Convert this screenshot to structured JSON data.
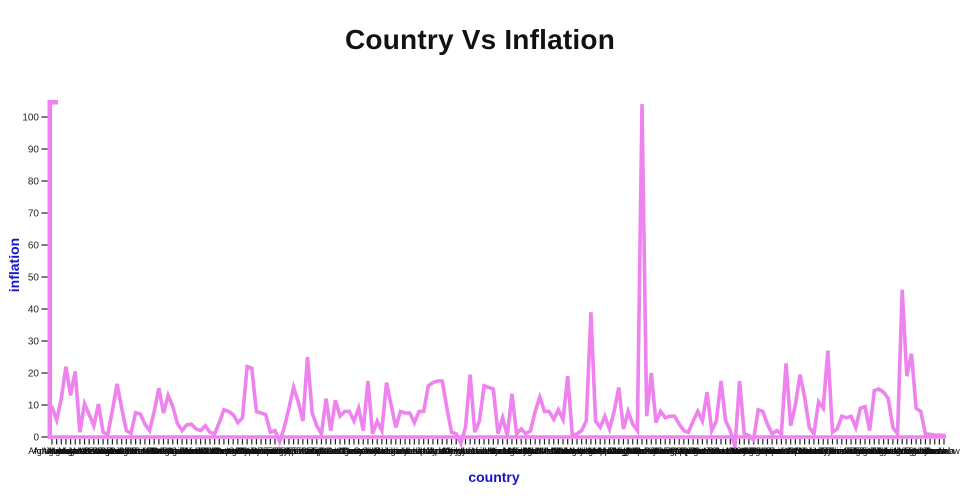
{
  "title": "Country Vs Inflation",
  "colors": {
    "line": "#EE82EE",
    "axis": "#EE82EE",
    "axis_title": "#1414d2",
    "tick": "#333333",
    "tick_label": "#262626",
    "title_text": "#111111",
    "background": "#FFFFFF"
  },
  "chart_data": {
    "type": "line",
    "title": "Country Vs Inflation",
    "xlabel": "country",
    "ylabel": "inflation",
    "legend": false,
    "grid": false,
    "yticks": [
      0,
      10,
      20,
      30,
      40,
      50,
      60,
      70,
      80,
      90,
      100
    ],
    "ylim": [
      -3,
      104
    ],
    "line_color": "#EE82EE",
    "categories": [
      "Afghanistan",
      "Albania",
      "Algeria",
      "Andorra",
      "Angola",
      "Antigua and Barbuda",
      "Argentina",
      "Armenia",
      "Australia",
      "Austria",
      "Azerbaijan",
      "Bahamas",
      "Bahrain",
      "Bangladesh",
      "Barbados",
      "Belarus",
      "Belgium",
      "Belize",
      "Benin",
      "Bhutan",
      "Bolivia",
      "Bosnia and Herzegovina",
      "Botswana",
      "Brazil",
      "Brunei",
      "Bulgaria",
      "Burkina Faso",
      "Burundi",
      "Cabo Verde",
      "Cambodia",
      "Cameroon",
      "Canada",
      "Central African Republic",
      "Chad",
      "Chile",
      "China",
      "Colombia",
      "Comoros",
      "Congo",
      "Costa Rica",
      "Cote d'Ivoire",
      "Croatia",
      "Cuba",
      "Cyprus",
      "Czechia",
      "Denmark",
      "Djibouti",
      "Dominica",
      "Dominican Republic",
      "Ecuador",
      "Egypt",
      "El Salvador",
      "Equatorial Guinea",
      "Eritrea",
      "Estonia",
      "Eswatini",
      "Ethiopia",
      "Fiji",
      "Finland",
      "France",
      "Gabon",
      "Gambia",
      "Georgia",
      "Germany",
      "Ghana",
      "Greece",
      "Grenada",
      "Guatemala",
      "Guinea",
      "Guinea-Bissau",
      "Guyana",
      "Haiti",
      "Honduras",
      "Hungary",
      "Iceland",
      "India",
      "Indonesia",
      "Iran",
      "Iraq",
      "Ireland",
      "Israel",
      "Italy",
      "Jamaica",
      "Japan",
      "Jordan",
      "Kazakhstan",
      "Kenya",
      "Kiribati",
      "Kuwait",
      "Kyrgyzstan",
      "Laos",
      "Latvia",
      "Lebanon",
      "Lesotho",
      "Liberia",
      "Libya",
      "Liechtenstein",
      "Lithuania",
      "Luxembourg",
      "Madagascar",
      "Malawi",
      "Malaysia",
      "Maldives",
      "Mali",
      "Malta",
      "Marshall Islands",
      "Mauritania",
      "Mauritius",
      "Mexico",
      "Micronesia",
      "Moldova",
      "Monaco",
      "Mongolia",
      "Montenegro",
      "Morocco",
      "Mozambique",
      "Myanmar",
      "Namibia",
      "Nauru",
      "Nepal",
      "Netherlands",
      "New Zealand",
      "Nicaragua",
      "Niger",
      "Nigeria",
      "North Korea",
      "North Macedonia",
      "Norway",
      "Oman",
      "Pakistan",
      "Palau",
      "Panama",
      "Papua New Guinea",
      "Paraguay",
      "Peru",
      "Philippines",
      "Poland",
      "Portugal",
      "Qatar",
      "Romania",
      "Russia",
      "Rwanda",
      "Saint Kitts and Nevis",
      "Saint Lucia",
      "Saint Vincent and the Grenadines",
      "Samoa",
      "San Marino",
      "Sao Tome and Principe",
      "Saudi Arabia",
      "Senegal",
      "Serbia",
      "Seychelles",
      "Sierra Leone",
      "Singapore",
      "Slovakia",
      "Slovenia",
      "Solomon Islands",
      "Somalia",
      "South Africa",
      "South Korea",
      "South Sudan",
      "Spain",
      "Sri Lanka",
      "Sudan",
      "Suriname",
      "Sweden",
      "Switzerland",
      "Syria",
      "Taiwan",
      "Tajikistan",
      "Tanzania",
      "Thailand",
      "Timor-Leste",
      "Togo",
      "Tonga",
      "Trinidad and Tobago",
      "Tunisia",
      "Turkey",
      "Turkmenistan",
      "Tuvalu",
      "Uganda",
      "Ukraine",
      "United Arab Emirates",
      "United Kingdom",
      "United States",
      "Uruguay",
      "Uzbekistan",
      "Vanuatu",
      "Venezuela",
      "Vietnam",
      "Yemen",
      "Zambia",
      "Zimbabwe"
    ],
    "values": [
      9.4,
      5.3,
      12,
      22,
      13,
      20.5,
      1.5,
      10.4,
      7,
      3.5,
      10.3,
      1.5,
      0.8,
      8.3,
      16.6,
      9,
      2,
      1.2,
      7.6,
      7.2,
      4,
      2,
      8,
      15.3,
      7.5,
      13,
      9.5,
      4.2,
      2,
      3.8,
      4,
      2.5,
      2,
      3.5,
      1.5,
      1,
      4.5,
      8.5,
      8,
      7,
      4.5,
      6,
      22,
      21.5,
      8,
      7.5,
      7,
      1.5,
      2,
      -1.5,
      3,
      9,
      15.5,
      11,
      5,
      25,
      7.5,
      3.5,
      1,
      12,
      2,
      11.5,
      6.5,
      8,
      8,
      5,
      9,
      2,
      17.5,
      1,
      5,
      2,
      17,
      10,
      3,
      8,
      7.5,
      7.5,
      4.5,
      8,
      8,
      16,
      17,
      17.5,
      17.5,
      9,
      1.5,
      1,
      -2,
      3,
      19.5,
      1.5,
      5,
      16,
      15.5,
      15,
      1,
      6,
      0.5,
      13.5,
      1,
      2.5,
      1,
      2,
      8,
      12.5,
      8,
      8,
      5.5,
      8.5,
      5.5,
      19,
      0.5,
      1,
      2,
      5,
      39,
      5,
      3,
      6.5,
      2.5,
      8,
      15.5,
      2.5,
      8,
      4,
      2,
      104,
      6.5,
      20,
      4.5,
      8,
      6,
      6.5,
      6.5,
      4,
      2,
      1.5,
      5,
      8,
      5,
      14,
      2,
      5,
      17.5,
      5,
      2,
      -3,
      17.5,
      1,
      0.5,
      -1,
      8.5,
      8,
      4,
      1,
      2,
      1,
      23,
      3.5,
      10,
      19.5,
      12.5,
      3,
      1,
      11,
      9,
      27,
      1.5,
      2.5,
      6.5,
      6,
      6.5,
      3,
      9,
      9.5,
      2,
      14.5,
      15,
      14,
      12,
      3,
      1,
      46,
      19,
      26,
      9,
      8,
      1,
      0.8,
      0.5,
      0.6,
      0.5
    ]
  }
}
